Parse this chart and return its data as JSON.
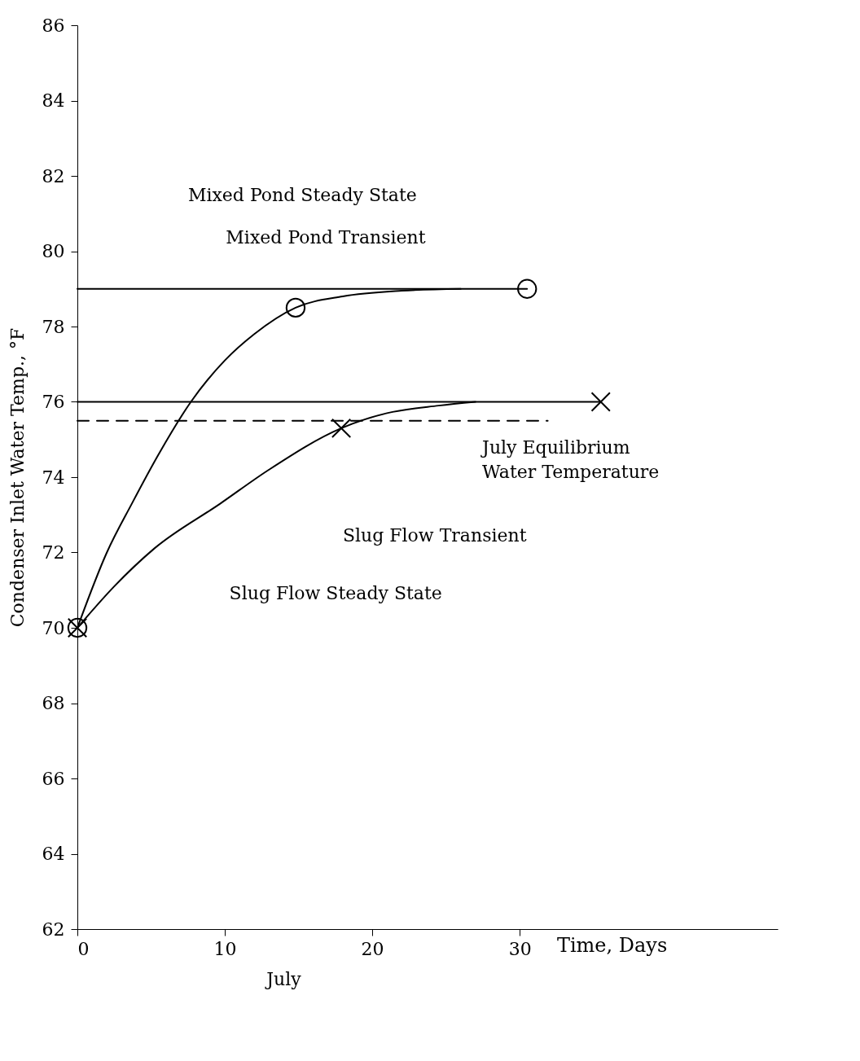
{
  "chart_data": {
    "type": "line",
    "xlabel": "Time, Days",
    "ylabel": "Condenser Inlet Water Temp., °F",
    "xlim": [
      0,
      47.5
    ],
    "xticks": [
      0,
      10,
      20,
      30
    ],
    "ylim": [
      62,
      86
    ],
    "yticks": [
      62,
      64,
      66,
      68,
      70,
      72,
      74,
      76,
      78,
      80,
      82,
      84,
      86
    ],
    "series": [
      {
        "color": "#000000",
        "x": [
          0,
          30.5
        ],
        "values": [
          79,
          79
        ]
      },
      {
        "color": "#000000",
        "x": [
          0,
          2,
          3.7,
          5.5,
          7.7,
          10,
          12,
          14.8,
          18,
          22,
          26
        ],
        "values": [
          70,
          72,
          73.3,
          74.6,
          76,
          77.1,
          77.8,
          78.5,
          78.8,
          78.95,
          79
        ]
      },
      {
        "color": "#000000",
        "x": [
          0,
          35.5
        ],
        "values": [
          76,
          76
        ]
      },
      {
        "color": "#000000",
        "x": [
          0,
          2.5,
          5.2,
          9.7,
          13,
          17.9,
          21,
          24.5,
          27
        ],
        "values": [
          70,
          71.1,
          72.1,
          73.3,
          74.2,
          75.3,
          75.7,
          75.9,
          76
        ]
      },
      {
        "color": "#000000",
        "line_style": "dashed",
        "x": [
          0,
          31.9
        ],
        "values": [
          75.5,
          75.5
        ]
      },
      {
        "type": "scatter",
        "color": "#000000",
        "marker": "circle",
        "x": [
          0,
          14.8,
          30.5
        ],
        "values": [
          70,
          78.5,
          79
        ]
      },
      {
        "type": "scatter",
        "color": "#000000",
        "marker": "cross",
        "x": [
          0,
          17.9,
          35.5
        ],
        "values": [
          70,
          75.3,
          76
        ]
      }
    ],
    "annotations": [
      "Mixed Pond Steady State",
      "Mixed Pond  Transient",
      "July Equilibrium\nWater Temperature",
      "Slug Flow Transient",
      "Slug Flow Steady State",
      "July"
    ]
  }
}
